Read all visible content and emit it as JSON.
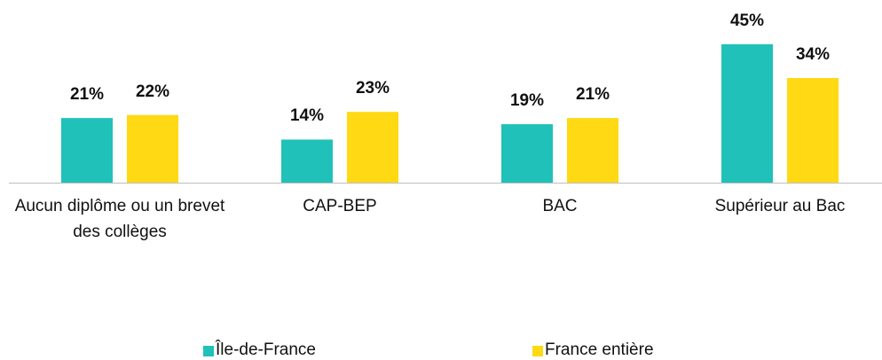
{
  "chart_data": {
    "type": "bar",
    "categories": [
      "Aucun diplôme ou un brevet des collèges",
      "CAP-BEP",
      "BAC",
      "Supérieur au Bac"
    ],
    "series": [
      {
        "name": "Île-de-France",
        "color": "#20c1b9",
        "values": [
          21,
          14,
          19,
          45
        ],
        "value_labels": [
          "21%",
          "14%",
          "19%",
          "45%"
        ]
      },
      {
        "name": "France entière",
        "color": "#ffd914",
        "values": [
          22,
          23,
          21,
          34
        ],
        "value_labels": [
          "22%",
          "23%",
          "21%",
          "34%"
        ]
      }
    ],
    "legend": "bottom"
  }
}
